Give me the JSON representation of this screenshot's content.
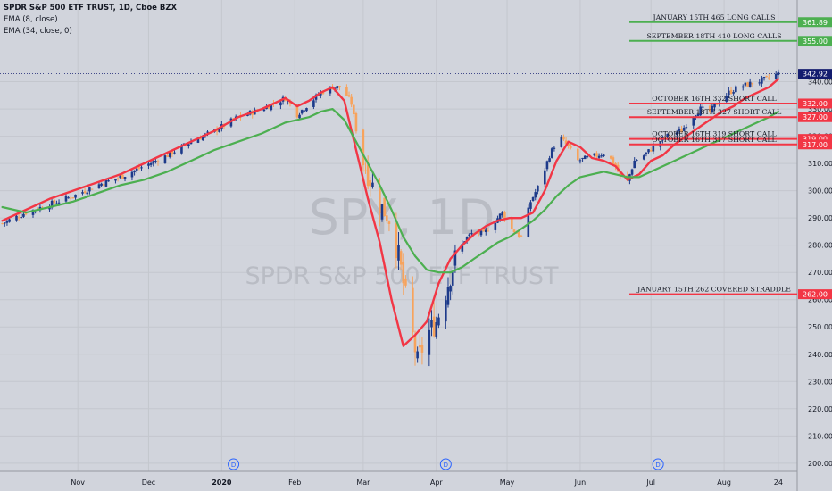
{
  "legend": {
    "title": "SPDR S&P 500 ETF TRUST, 1D, Cboe BZX",
    "ema1": "EMA (8, close)",
    "ema2": "EMA (34, close, 0)"
  },
  "watermark": {
    "ticker": "SPY, 1D",
    "name": "SPDR S&P 500 ETF TRUST"
  },
  "chart_data": {
    "type": "candlestick",
    "y_axis_ticks": [
      200,
      210,
      220,
      230,
      240,
      250,
      260,
      270,
      280,
      290,
      300,
      310,
      320,
      330,
      340
    ],
    "y_axis_labels": [
      "200.00",
      "210.00",
      "220.00",
      "230.00",
      "240.00",
      "250.00",
      "260.00",
      "270.00",
      "280.00",
      "290.00",
      "300.00",
      "310.00",
      "320.00",
      "330.00",
      "340.00"
    ],
    "ylim": [
      197,
      370
    ],
    "x_axis_labels": [
      {
        "label": "Nov",
        "day": 12
      },
      {
        "label": "Dec",
        "day": 42
      },
      {
        "label": "2020",
        "day": 73
      },
      {
        "label": "Feb",
        "day": 104
      },
      {
        "label": "Mar",
        "day": 133
      },
      {
        "label": "Apr",
        "day": 164
      },
      {
        "label": "May",
        "day": 194
      },
      {
        "label": "Jun",
        "day": 225
      },
      {
        "label": "Jul",
        "day": 255
      },
      {
        "label": "Aug",
        "day": 286
      },
      {
        "label": "24",
        "day": 309
      }
    ],
    "xlim": [
      -21,
      317
    ],
    "last_price": {
      "value": 342.92,
      "label": "342.92",
      "color": "#131c6e"
    },
    "dividend_markers": [
      {
        "label": "D",
        "day": 78
      },
      {
        "label": "D",
        "day": 168
      },
      {
        "label": "D",
        "day": 258
      }
    ],
    "close_series": {
      "days": [
        -20,
        -10,
        0,
        10,
        20,
        30,
        40,
        50,
        60,
        70,
        80,
        90,
        100,
        105,
        110,
        115,
        120,
        124,
        128,
        132,
        136,
        140,
        144,
        148,
        152,
        156,
        160,
        164,
        168,
        172,
        176,
        180,
        184,
        188,
        192,
        196,
        200,
        204,
        208,
        212,
        216,
        220,
        224,
        228,
        232,
        236,
        240,
        244,
        248,
        252,
        256,
        260,
        264,
        268,
        272,
        276,
        280,
        284,
        288,
        292,
        296,
        300,
        304,
        309
      ],
      "values": [
        288,
        292,
        295,
        298,
        302,
        305,
        309,
        313,
        318,
        322,
        327,
        330,
        334,
        328,
        332,
        336,
        338,
        338,
        332,
        313,
        304,
        295,
        290,
        276,
        256,
        237,
        247,
        252,
        263,
        275,
        282,
        285,
        284,
        288,
        292,
        286,
        283,
        296,
        303,
        313,
        320,
        316,
        311,
        312,
        313,
        314,
        309,
        301,
        311,
        313,
        316,
        319,
        321,
        322,
        327,
        330,
        329,
        333,
        336,
        338,
        339,
        340,
        341,
        343
      ]
    },
    "series": [
      {
        "name": "EMA (8, close)",
        "color": "#f23645",
        "days": [
          -20,
          -10,
          0,
          10,
          20,
          30,
          40,
          50,
          60,
          70,
          80,
          90,
          100,
          105,
          110,
          115,
          120,
          125,
          130,
          135,
          140,
          145,
          150,
          155,
          160,
          165,
          170,
          175,
          180,
          185,
          190,
          195,
          200,
          205,
          210,
          215,
          220,
          225,
          230,
          235,
          240,
          245,
          250,
          255,
          260,
          265,
          270,
          275,
          280,
          285,
          290,
          295,
          300,
          305,
          309
        ],
        "values": [
          289,
          293,
          297,
          300,
          303,
          306,
          310,
          314,
          318,
          322,
          327,
          330,
          334,
          331,
          333,
          336,
          338,
          333,
          315,
          297,
          281,
          260,
          243,
          247,
          252,
          266,
          275,
          280,
          284,
          287,
          289,
          290,
          290,
          292,
          300,
          311,
          318,
          316,
          312,
          311,
          309,
          304,
          306,
          311,
          313,
          317,
          320,
          323,
          326,
          329,
          331,
          334,
          336,
          338,
          341
        ]
      },
      {
        "name": "EMA (34, close, 0)",
        "color": "#4caf50",
        "days": [
          -20,
          -10,
          0,
          10,
          20,
          30,
          40,
          50,
          60,
          70,
          80,
          90,
          100,
          105,
          110,
          115,
          120,
          125,
          130,
          135,
          140,
          145,
          150,
          155,
          160,
          165,
          170,
          175,
          180,
          185,
          190,
          195,
          200,
          205,
          210,
          215,
          220,
          225,
          230,
          235,
          240,
          245,
          250,
          255,
          260,
          265,
          270,
          275,
          280,
          285,
          290,
          295,
          300,
          305,
          309
        ],
        "values": [
          294,
          292,
          294,
          296,
          299,
          302,
          304,
          307,
          311,
          315,
          318,
          321,
          325,
          326,
          327,
          329,
          330,
          326,
          318,
          310,
          302,
          293,
          283,
          276,
          271,
          270,
          270,
          272,
          275,
          278,
          281,
          283,
          286,
          289,
          293,
          298,
          302,
          305,
          306,
          307,
          306,
          305,
          305,
          307,
          309,
          311,
          313,
          315,
          317,
          319,
          321,
          323,
          325,
          327,
          329
        ]
      }
    ],
    "price_levels": [
      {
        "value": 361.89,
        "label": "361.89",
        "color": "#4caf50",
        "text": "JANUARY 15TH 465 LONG CALLS"
      },
      {
        "value": 355.0,
        "label": "355.00",
        "color": "#4caf50",
        "text": "SEPTEMBER 18TH 410 LONG CALLS"
      },
      {
        "value": 332.0,
        "label": "332.00",
        "color": "#f23645",
        "text": "OCTOBER 16TH 332 SHORT CALL"
      },
      {
        "value": 327.0,
        "label": "327.00",
        "color": "#f23645",
        "text": "SEPTEMBER 18TH 327 SHORT CALL"
      },
      {
        "value": 319.0,
        "label": "319.00",
        "color": "#f23645",
        "text": "OCTOBER 16TH 319 SHORT CALL"
      },
      {
        "value": 317.0,
        "label": "317.00",
        "color": "#f23645",
        "text": "OCTOBER 16TH 317 SHORT CALL"
      },
      {
        "value": 262.0,
        "label": "262.00",
        "color": "#f23645",
        "text": "JANUARY 15TH 262 COVERED STRADDLE"
      }
    ],
    "colors": {
      "up": "#1d3a8a",
      "down": "#f7a35c",
      "background": "#d1d4dc",
      "grid": "#c4c7ce",
      "text": "#131722"
    }
  }
}
